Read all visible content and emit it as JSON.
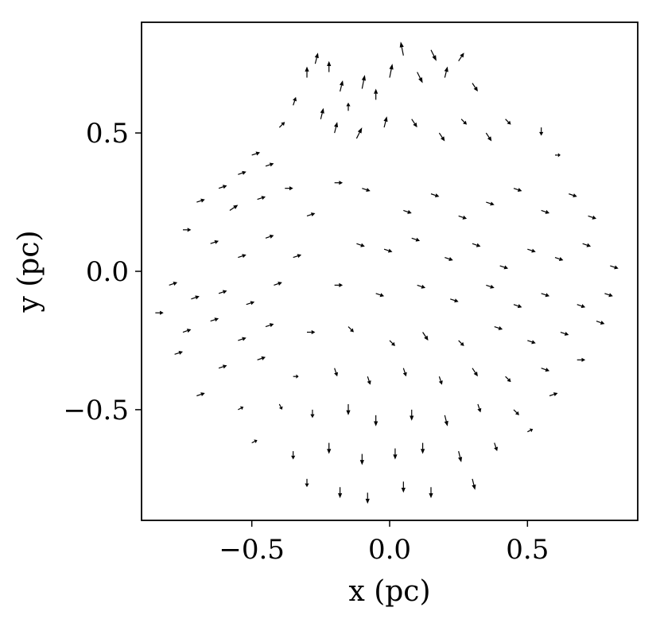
{
  "chart_data": {
    "type": "quiver",
    "xlabel": "x (pc)",
    "ylabel": "y (pc)",
    "xlim": [
      -0.9,
      0.9
    ],
    "ylim": [
      -0.9,
      0.9
    ],
    "xticks": [
      {
        "value": -0.5,
        "label": "−0.5"
      },
      {
        "value": 0.0,
        "label": "0.0"
      },
      {
        "value": 0.5,
        "label": "0.5"
      }
    ],
    "yticks": [
      {
        "value": 0.5,
        "label": "0.5"
      },
      {
        "value": 0.0,
        "label": "0.0"
      },
      {
        "value": -0.5,
        "label": "−0.5"
      }
    ],
    "grid": false,
    "arrow_color": "#000000",
    "arrows": [
      {
        "x": -0.35,
        "y": 0.6,
        "u": 0.01,
        "v": 0.03
      },
      {
        "x": -0.3,
        "y": 0.7,
        "u": 0.0,
        "v": 0.04
      },
      {
        "x": -0.27,
        "y": 0.75,
        "u": 0.01,
        "v": 0.04
      },
      {
        "x": -0.22,
        "y": 0.72,
        "u": 0.0,
        "v": 0.04
      },
      {
        "x": -0.18,
        "y": 0.65,
        "u": 0.01,
        "v": 0.04
      },
      {
        "x": -0.15,
        "y": 0.58,
        "u": 0.0,
        "v": 0.03
      },
      {
        "x": -0.1,
        "y": 0.66,
        "u": 0.01,
        "v": 0.05
      },
      {
        "x": -0.05,
        "y": 0.62,
        "u": 0.0,
        "v": 0.04
      },
      {
        "x": 0.0,
        "y": 0.7,
        "u": 0.01,
        "v": 0.05
      },
      {
        "x": 0.05,
        "y": 0.78,
        "u": -0.01,
        "v": 0.05
      },
      {
        "x": 0.1,
        "y": 0.72,
        "u": 0.02,
        "v": -0.04
      },
      {
        "x": 0.15,
        "y": 0.8,
        "u": 0.02,
        "v": -0.04
      },
      {
        "x": 0.2,
        "y": 0.7,
        "u": 0.01,
        "v": 0.04
      },
      {
        "x": 0.25,
        "y": 0.76,
        "u": 0.02,
        "v": 0.03
      },
      {
        "x": 0.3,
        "y": 0.68,
        "u": 0.02,
        "v": -0.03
      },
      {
        "x": -0.4,
        "y": 0.52,
        "u": 0.02,
        "v": 0.02
      },
      {
        "x": -0.25,
        "y": 0.55,
        "u": 0.01,
        "v": 0.04
      },
      {
        "x": -0.2,
        "y": 0.5,
        "u": 0.01,
        "v": 0.04
      },
      {
        "x": -0.12,
        "y": 0.48,
        "u": 0.02,
        "v": 0.04
      },
      {
        "x": -0.02,
        "y": 0.52,
        "u": 0.01,
        "v": 0.04
      },
      {
        "x": 0.08,
        "y": 0.55,
        "u": 0.02,
        "v": -0.03
      },
      {
        "x": 0.18,
        "y": 0.5,
        "u": 0.02,
        "v": -0.03
      },
      {
        "x": 0.26,
        "y": 0.55,
        "u": 0.02,
        "v": -0.02
      },
      {
        "x": 0.35,
        "y": 0.5,
        "u": 0.02,
        "v": -0.03
      },
      {
        "x": 0.42,
        "y": 0.55,
        "u": 0.02,
        "v": -0.02
      },
      {
        "x": 0.55,
        "y": 0.52,
        "u": 0.0,
        "v": -0.03
      },
      {
        "x": 0.6,
        "y": 0.42,
        "u": 0.02,
        "v": 0.0
      },
      {
        "x": -0.5,
        "y": 0.42,
        "u": 0.03,
        "v": 0.01
      },
      {
        "x": -0.55,
        "y": 0.35,
        "u": 0.03,
        "v": 0.01
      },
      {
        "x": -0.45,
        "y": 0.38,
        "u": 0.03,
        "v": 0.01
      },
      {
        "x": -0.62,
        "y": 0.3,
        "u": 0.03,
        "v": 0.01
      },
      {
        "x": -0.7,
        "y": 0.25,
        "u": 0.03,
        "v": 0.01
      },
      {
        "x": -0.58,
        "y": 0.22,
        "u": 0.03,
        "v": 0.02
      },
      {
        "x": -0.48,
        "y": 0.26,
        "u": 0.03,
        "v": 0.01
      },
      {
        "x": -0.38,
        "y": 0.3,
        "u": 0.03,
        "v": 0.0
      },
      {
        "x": -0.3,
        "y": 0.2,
        "u": 0.03,
        "v": 0.01
      },
      {
        "x": -0.2,
        "y": 0.32,
        "u": 0.03,
        "v": 0.0
      },
      {
        "x": -0.1,
        "y": 0.3,
        "u": 0.03,
        "v": -0.01
      },
      {
        "x": 0.05,
        "y": 0.22,
        "u": 0.03,
        "v": -0.01
      },
      {
        "x": 0.15,
        "y": 0.28,
        "u": 0.03,
        "v": -0.01
      },
      {
        "x": 0.25,
        "y": 0.2,
        "u": 0.03,
        "v": -0.01
      },
      {
        "x": 0.35,
        "y": 0.25,
        "u": 0.03,
        "v": -0.01
      },
      {
        "x": 0.45,
        "y": 0.3,
        "u": 0.03,
        "v": -0.01
      },
      {
        "x": 0.55,
        "y": 0.22,
        "u": 0.03,
        "v": -0.01
      },
      {
        "x": 0.65,
        "y": 0.28,
        "u": 0.03,
        "v": -0.01
      },
      {
        "x": 0.72,
        "y": 0.2,
        "u": 0.03,
        "v": -0.01
      },
      {
        "x": -0.75,
        "y": 0.15,
        "u": 0.03,
        "v": 0.0
      },
      {
        "x": -0.65,
        "y": 0.1,
        "u": 0.03,
        "v": 0.01
      },
      {
        "x": -0.55,
        "y": 0.05,
        "u": 0.03,
        "v": 0.01
      },
      {
        "x": -0.45,
        "y": 0.12,
        "u": 0.03,
        "v": 0.01
      },
      {
        "x": -0.35,
        "y": 0.05,
        "u": 0.03,
        "v": 0.01
      },
      {
        "x": -0.12,
        "y": 0.1,
        "u": 0.03,
        "v": -0.01
      },
      {
        "x": -0.02,
        "y": 0.08,
        "u": 0.03,
        "v": -0.01
      },
      {
        "x": 0.08,
        "y": 0.12,
        "u": 0.03,
        "v": -0.01
      },
      {
        "x": 0.2,
        "y": 0.05,
        "u": 0.03,
        "v": -0.01
      },
      {
        "x": 0.3,
        "y": 0.1,
        "u": 0.03,
        "v": -0.01
      },
      {
        "x": 0.4,
        "y": 0.02,
        "u": 0.03,
        "v": -0.01
      },
      {
        "x": 0.5,
        "y": 0.08,
        "u": 0.03,
        "v": -0.01
      },
      {
        "x": 0.6,
        "y": 0.05,
        "u": 0.03,
        "v": -0.01
      },
      {
        "x": 0.7,
        "y": 0.1,
        "u": 0.03,
        "v": -0.01
      },
      {
        "x": 0.8,
        "y": 0.02,
        "u": 0.03,
        "v": -0.01
      },
      {
        "x": -0.8,
        "y": -0.05,
        "u": 0.03,
        "v": 0.01
      },
      {
        "x": -0.72,
        "y": -0.1,
        "u": 0.03,
        "v": 0.01
      },
      {
        "x": -0.62,
        "y": -0.08,
        "u": 0.03,
        "v": 0.01
      },
      {
        "x": -0.52,
        "y": -0.12,
        "u": 0.03,
        "v": 0.01
      },
      {
        "x": -0.42,
        "y": -0.05,
        "u": 0.03,
        "v": 0.01
      },
      {
        "x": -0.2,
        "y": -0.05,
        "u": 0.03,
        "v": 0.0
      },
      {
        "x": -0.05,
        "y": -0.08,
        "u": 0.03,
        "v": -0.01
      },
      {
        "x": 0.1,
        "y": -0.05,
        "u": 0.03,
        "v": -0.01
      },
      {
        "x": 0.22,
        "y": -0.1,
        "u": 0.03,
        "v": -0.01
      },
      {
        "x": 0.35,
        "y": -0.05,
        "u": 0.03,
        "v": -0.01
      },
      {
        "x": 0.45,
        "y": -0.12,
        "u": 0.03,
        "v": -0.01
      },
      {
        "x": 0.55,
        "y": -0.08,
        "u": 0.03,
        "v": -0.01
      },
      {
        "x": 0.68,
        "y": -0.12,
        "u": 0.03,
        "v": -0.01
      },
      {
        "x": 0.78,
        "y": -0.08,
        "u": 0.03,
        "v": -0.01
      },
      {
        "x": -0.85,
        "y": -0.15,
        "u": 0.03,
        "v": 0.0
      },
      {
        "x": -0.75,
        "y": -0.22,
        "u": 0.03,
        "v": 0.01
      },
      {
        "x": -0.65,
        "y": -0.18,
        "u": 0.03,
        "v": 0.01
      },
      {
        "x": -0.55,
        "y": -0.25,
        "u": 0.03,
        "v": 0.01
      },
      {
        "x": -0.45,
        "y": -0.2,
        "u": 0.03,
        "v": 0.01
      },
      {
        "x": -0.3,
        "y": -0.22,
        "u": 0.03,
        "v": 0.0
      },
      {
        "x": -0.15,
        "y": -0.2,
        "u": 0.02,
        "v": -0.02
      },
      {
        "x": 0.0,
        "y": -0.25,
        "u": 0.02,
        "v": -0.02
      },
      {
        "x": 0.12,
        "y": -0.22,
        "u": 0.02,
        "v": -0.03
      },
      {
        "x": 0.25,
        "y": -0.25,
        "u": 0.02,
        "v": -0.02
      },
      {
        "x": 0.38,
        "y": -0.2,
        "u": 0.03,
        "v": -0.01
      },
      {
        "x": 0.5,
        "y": -0.25,
        "u": 0.03,
        "v": -0.01
      },
      {
        "x": 0.62,
        "y": -0.22,
        "u": 0.03,
        "v": -0.01
      },
      {
        "x": 0.75,
        "y": -0.18,
        "u": 0.03,
        "v": -0.01
      },
      {
        "x": -0.78,
        "y": -0.3,
        "u": 0.03,
        "v": 0.01
      },
      {
        "x": -0.62,
        "y": -0.35,
        "u": 0.03,
        "v": 0.01
      },
      {
        "x": -0.48,
        "y": -0.32,
        "u": 0.03,
        "v": 0.01
      },
      {
        "x": -0.35,
        "y": -0.38,
        "u": 0.02,
        "v": 0.0
      },
      {
        "x": -0.2,
        "y": -0.35,
        "u": 0.01,
        "v": -0.03
      },
      {
        "x": -0.08,
        "y": -0.38,
        "u": 0.01,
        "v": -0.03
      },
      {
        "x": 0.05,
        "y": -0.35,
        "u": 0.01,
        "v": -0.03
      },
      {
        "x": 0.18,
        "y": -0.38,
        "u": 0.01,
        "v": -0.03
      },
      {
        "x": 0.3,
        "y": -0.35,
        "u": 0.02,
        "v": -0.03
      },
      {
        "x": 0.42,
        "y": -0.38,
        "u": 0.02,
        "v": -0.02
      },
      {
        "x": 0.55,
        "y": -0.35,
        "u": 0.03,
        "v": -0.01
      },
      {
        "x": 0.68,
        "y": -0.32,
        "u": 0.03,
        "v": 0.0
      },
      {
        "x": -0.7,
        "y": -0.45,
        "u": 0.03,
        "v": 0.01
      },
      {
        "x": -0.55,
        "y": -0.5,
        "u": 0.02,
        "v": 0.01
      },
      {
        "x": -0.4,
        "y": -0.48,
        "u": 0.01,
        "v": -0.02
      },
      {
        "x": -0.28,
        "y": -0.5,
        "u": 0.0,
        "v": -0.03
      },
      {
        "x": -0.15,
        "y": -0.48,
        "u": 0.0,
        "v": -0.04
      },
      {
        "x": -0.05,
        "y": -0.52,
        "u": 0.0,
        "v": -0.04
      },
      {
        "x": 0.08,
        "y": -0.5,
        "u": 0.0,
        "v": -0.04
      },
      {
        "x": 0.2,
        "y": -0.52,
        "u": 0.01,
        "v": -0.04
      },
      {
        "x": 0.32,
        "y": -0.48,
        "u": 0.01,
        "v": -0.03
      },
      {
        "x": 0.45,
        "y": -0.5,
        "u": 0.02,
        "v": -0.02
      },
      {
        "x": 0.58,
        "y": -0.45,
        "u": 0.03,
        "v": 0.01
      },
      {
        "x": -0.5,
        "y": -0.62,
        "u": 0.02,
        "v": 0.01
      },
      {
        "x": -0.35,
        "y": -0.65,
        "u": 0.0,
        "v": -0.03
      },
      {
        "x": -0.22,
        "y": -0.62,
        "u": 0.0,
        "v": -0.04
      },
      {
        "x": -0.1,
        "y": -0.66,
        "u": 0.0,
        "v": -0.04
      },
      {
        "x": 0.02,
        "y": -0.64,
        "u": 0.0,
        "v": -0.04
      },
      {
        "x": 0.12,
        "y": -0.62,
        "u": 0.0,
        "v": -0.04
      },
      {
        "x": 0.25,
        "y": -0.65,
        "u": 0.01,
        "v": -0.04
      },
      {
        "x": 0.38,
        "y": -0.62,
        "u": 0.01,
        "v": -0.03
      },
      {
        "x": 0.5,
        "y": -0.58,
        "u": 0.02,
        "v": 0.01
      },
      {
        "x": -0.3,
        "y": -0.75,
        "u": 0.0,
        "v": -0.03
      },
      {
        "x": -0.18,
        "y": -0.78,
        "u": 0.0,
        "v": -0.04
      },
      {
        "x": -0.08,
        "y": -0.8,
        "u": 0.0,
        "v": -0.04
      },
      {
        "x": 0.05,
        "y": -0.76,
        "u": 0.0,
        "v": -0.04
      },
      {
        "x": 0.15,
        "y": -0.78,
        "u": 0.0,
        "v": -0.04
      },
      {
        "x": 0.3,
        "y": -0.75,
        "u": 0.01,
        "v": -0.04
      }
    ]
  }
}
